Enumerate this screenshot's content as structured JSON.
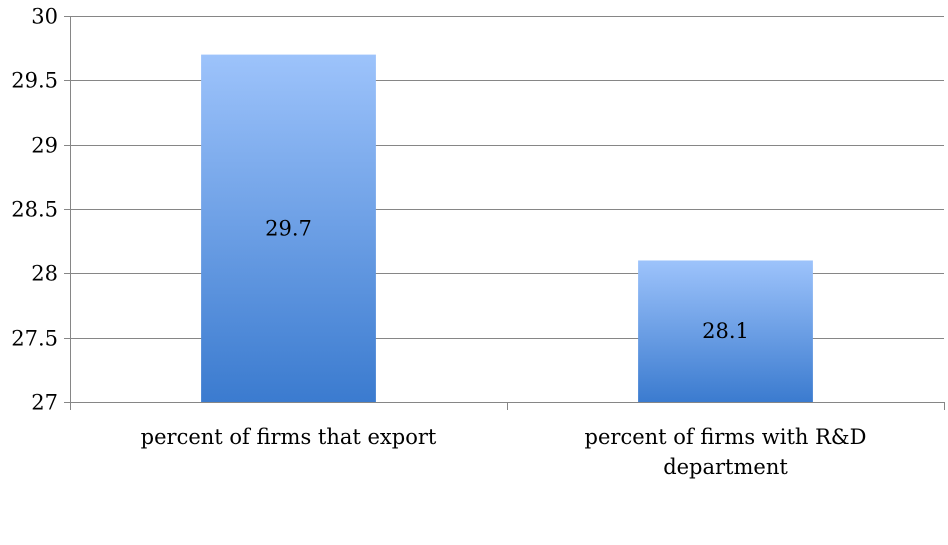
{
  "chart_data": {
    "type": "bar",
    "title": "",
    "xlabel": "",
    "ylabel": "",
    "categories": [
      [
        "percent of firms that export"
      ],
      [
        "percent of firms with R&D",
        "department"
      ]
    ],
    "values": [
      29.7,
      28.1
    ],
    "data_labels": [
      "29.7",
      "28.1"
    ],
    "ylim": [
      27,
      30
    ],
    "yticks": [
      27,
      27.5,
      28,
      28.5,
      29,
      29.5,
      30
    ],
    "ytick_labels": [
      "27",
      "27.5",
      "28",
      "28.5",
      "29",
      "29.5",
      "30"
    ],
    "grid": true,
    "legend": "none",
    "colors": {
      "bar_top": "#9dc3fb",
      "bar_bottom": "#3b7bcf",
      "grid": "#868686"
    }
  }
}
